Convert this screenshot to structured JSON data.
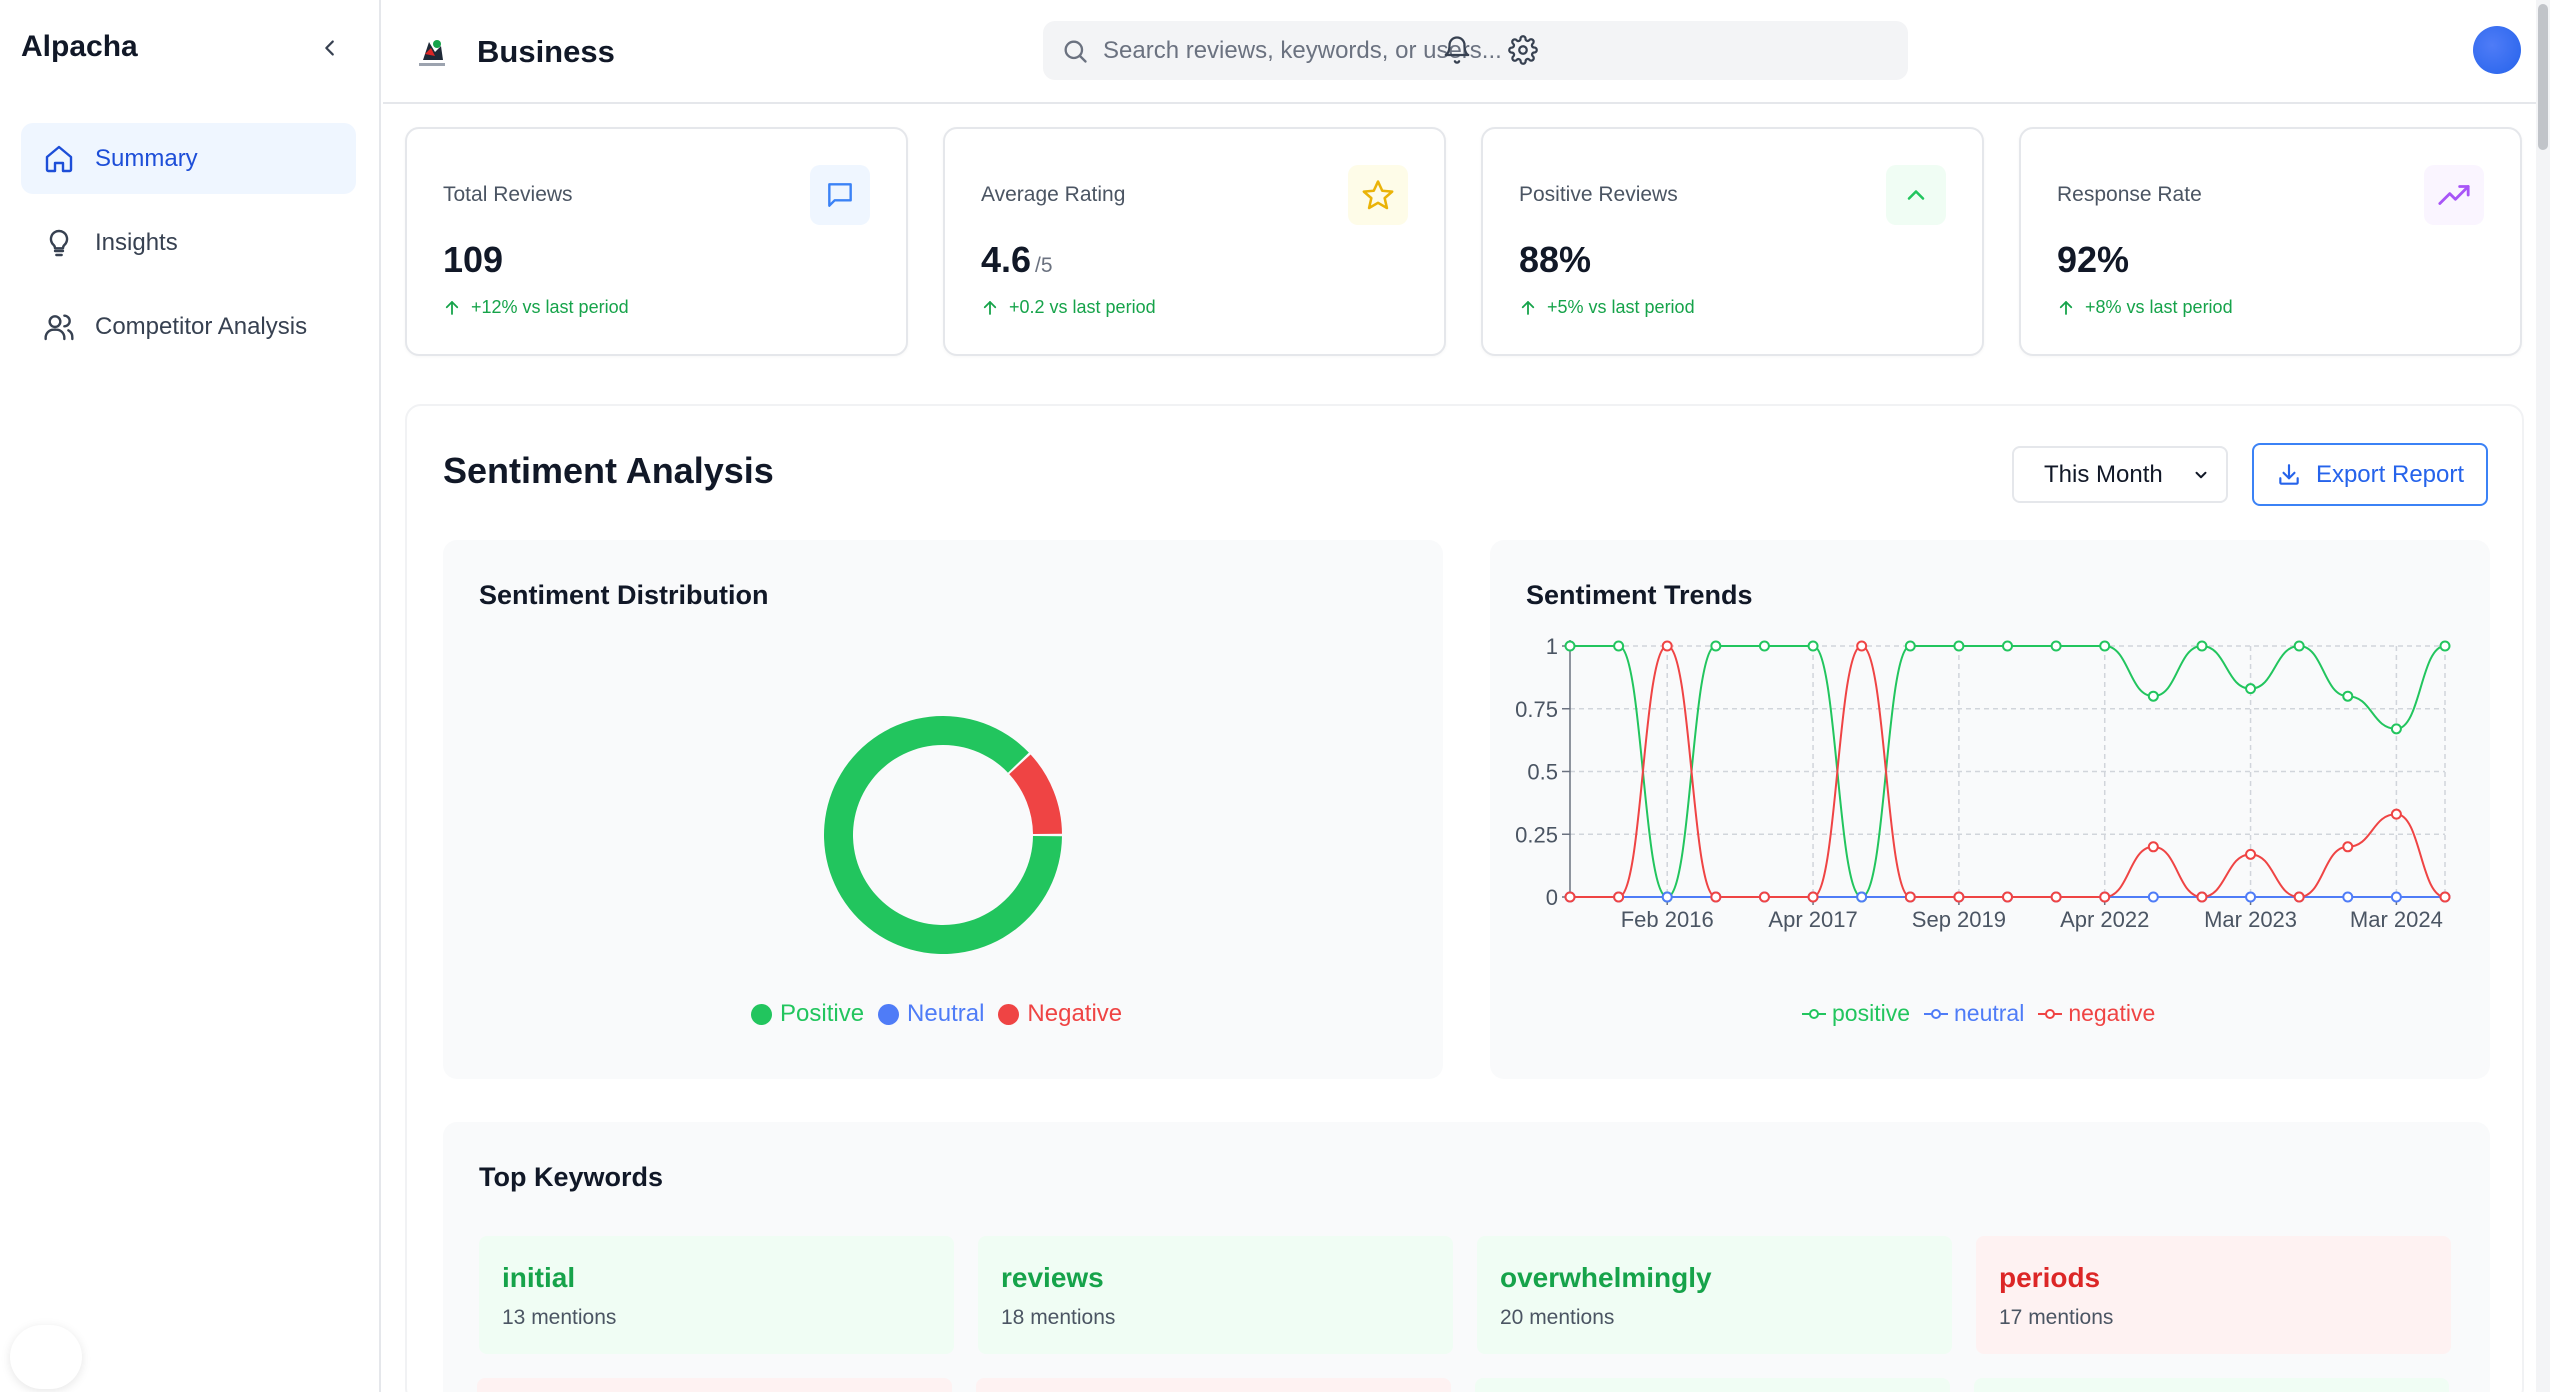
{
  "app": {
    "brand": "Alpacha"
  },
  "sidebar": {
    "items": [
      {
        "label": "Summary",
        "icon": "home-icon",
        "active": true
      },
      {
        "label": "Insights",
        "icon": "lightbulb-icon",
        "active": false
      },
      {
        "label": "Competitor Analysis",
        "icon": "users-icon",
        "active": false
      }
    ]
  },
  "header": {
    "title": "Business",
    "search_placeholder": "Search reviews, keywords, or users...",
    "icons": [
      "bell-icon",
      "gear-icon",
      "avatar"
    ]
  },
  "stats": [
    {
      "label": "Total Reviews",
      "value": "109",
      "suffix": "",
      "change": "+12% vs last period",
      "icon": "message-icon",
      "color": "#3b82f6"
    },
    {
      "label": "Average Rating",
      "value": "4.6",
      "suffix": "/5",
      "change": "+0.2 vs last period",
      "icon": "star-icon",
      "color": "#eab308"
    },
    {
      "label": "Positive Reviews",
      "value": "88%",
      "suffix": "",
      "change": "+5% vs last period",
      "icon": "chevron-up-icon",
      "color": "#22c55e"
    },
    {
      "label": "Response Rate",
      "value": "92%",
      "suffix": "",
      "change": "+8% vs last period",
      "icon": "trending-up-icon",
      "color": "#a855f7"
    }
  ],
  "sentiment": {
    "title": "Sentiment Analysis",
    "period": "This Month",
    "export_label": "Export Report",
    "distribution": {
      "title": "Sentiment Distribution",
      "legend": [
        {
          "label": "Positive",
          "color": "#22c55e"
        },
        {
          "label": "Neutral",
          "color": "#4f7cf7"
        },
        {
          "label": "Negative",
          "color": "#ef4444"
        }
      ]
    },
    "trends": {
      "title": "Sentiment Trends",
      "legend": [
        {
          "label": "positive",
          "color": "#22c55e"
        },
        {
          "label": "neutral",
          "color": "#4f7cf7"
        },
        {
          "label": "negative",
          "color": "#ef4444"
        }
      ]
    }
  },
  "keywords": {
    "title": "Top Keywords",
    "items": [
      {
        "word": "initial",
        "count": "13 mentions",
        "tone": "positive"
      },
      {
        "word": "reviews",
        "count": "18 mentions",
        "tone": "positive"
      },
      {
        "word": "overwhelmingly",
        "count": "20 mentions",
        "tone": "positive"
      },
      {
        "word": "periods",
        "count": "17 mentions",
        "tone": "negative"
      }
    ],
    "colors": {
      "positive_bg": "#f0fdf4",
      "positive_text": "#16a34a",
      "negative_bg": "#fef2f2",
      "negative_text": "#dc2626"
    }
  },
  "chart_data": [
    {
      "type": "pie",
      "title": "Sentiment Distribution",
      "categories": [
        "Positive",
        "Neutral",
        "Negative"
      ],
      "values": [
        88,
        0,
        12
      ],
      "colors": [
        "#22c55e",
        "#4f7cf7",
        "#ef4444"
      ],
      "donut": true,
      "legend": "bottom"
    },
    {
      "type": "line",
      "title": "Sentiment Trends",
      "x_tick_labels": [
        "Feb 2016",
        "Apr 2017",
        "Sep 2019",
        "Apr 2022",
        "Mar 2023",
        "Mar 2024"
      ],
      "y_ticks": [
        0,
        0.25,
        0.5,
        0.75,
        1
      ],
      "ylim": [
        0,
        1
      ],
      "grid": true,
      "legend": "bottom",
      "point_count": 19,
      "series": [
        {
          "name": "positive",
          "color": "#22c55e",
          "values": [
            1,
            1,
            0,
            1,
            1,
            1,
            0,
            1,
            1,
            1,
            1,
            1,
            0.8,
            1,
            0.83,
            1,
            0.8,
            0.67,
            1
          ]
        },
        {
          "name": "neutral",
          "color": "#4f7cf7",
          "values": [
            0,
            0,
            0,
            0,
            0,
            0,
            0,
            0,
            0,
            0,
            0,
            0,
            0,
            0,
            0,
            0,
            0,
            0,
            0
          ]
        },
        {
          "name": "negative",
          "color": "#ef4444",
          "values": [
            0,
            0,
            1,
            0,
            0,
            0,
            1,
            0,
            0,
            0,
            0,
            0,
            0.2,
            0,
            0.17,
            0,
            0.2,
            0.33,
            0
          ]
        }
      ]
    }
  ]
}
